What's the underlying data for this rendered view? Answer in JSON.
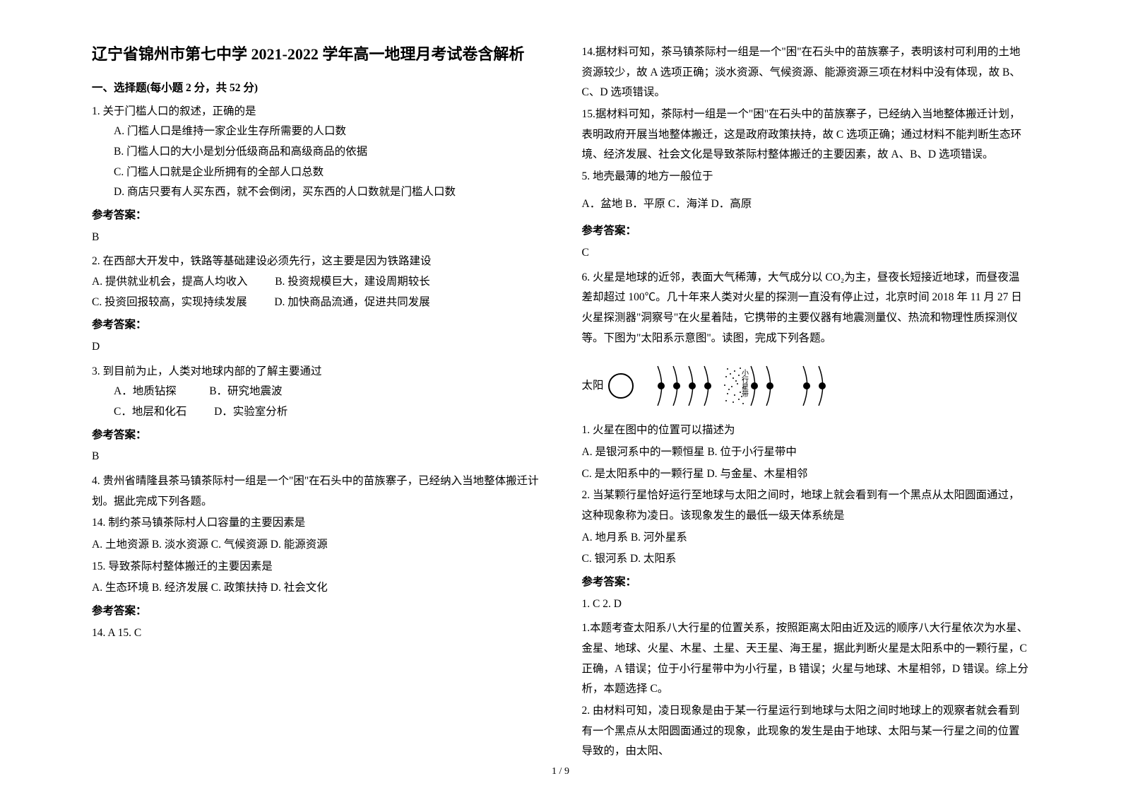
{
  "title": "辽宁省锦州市第七中学 2021-2022 学年高一地理月考试卷含解析",
  "section1_header": "一、选择题(每小题 2 分，共 52 分)",
  "q1": {
    "stem": "1. 关于门槛人口的叙述，正确的是",
    "optA": "A. 门槛人口是维持一家企业生存所需要的人口数",
    "optB": "B. 门槛人口的大小是划分低级商品和高级商品的依据",
    "optC": "C. 门槛人口就是企业所拥有的全部人口总数",
    "optD": "D. 商店只要有人买东西，就不会倒闭，买东西的人口数就是门槛人口数",
    "answer_label": "参考答案：",
    "answer": "B"
  },
  "q2": {
    "stem": "2. 在西部大开发中，铁路等基础建设必须先行，这主要是因为铁路建设",
    "optA": "A. 提供就业机会，提高人均收入",
    "optB": "B. 投资规模巨大，建设周期较长",
    "optC": "C. 投资回报较高，实现持续发展",
    "optD": "D. 加快商品流通，促进共同发展",
    "answer_label": "参考答案：",
    "answer": "D"
  },
  "q3": {
    "stem": "3. 到目前为止，人类对地球内部的了解主要通过",
    "optA": "A．地质钻探",
    "optB": "B．研究地震波",
    "optC": "C．地层和化石",
    "optD": "D．实验室分析",
    "answer_label": "参考答案：",
    "answer": "B"
  },
  "q4": {
    "intro": "4. 贵州省晴隆县茶马镇茶际村一组是一个\"困\"在石头中的苗族寨子，已经纳入当地整体搬迁计划。据此完成下列各题。",
    "sub14": "14.  制约茶马镇茶际村人口容量的主要因素是",
    "sub14_opts": "A. 土地资源   B. 淡水资源   C. 气候资源   D. 能源资源",
    "sub15": "15.  导致茶际村整体搬迁的主要因素是",
    "sub15_opts": "A. 生态环境   B. 经济发展   C. 政策扶持   D. 社会文化",
    "answer_label": "参考答案：",
    "answers": "14. A      15. C",
    "explain14": "14.据材料可知，茶马镇茶际村一组是一个\"困\"在石头中的苗族寨子，表明该村可利用的土地资源较少，故 A 选项正确；淡水资源、气候资源、能源资源三项在材料中没有体现，故 B、C、D 选项错误。",
    "explain15": "15.据材料可知，茶际村一组是一个\"困\"在石头中的苗族寨子，已经纳入当地整体搬迁计划，表明政府开展当地整体搬迁，这是政府政策扶持，故 C 选项正确；通过材料不能判断生态环境、经济发展、社会文化是导致茶际村整体搬迁的主要因素，故 A、B、D 选项错误。"
  },
  "q5": {
    "stem": "5. 地壳最薄的地方一般位于",
    "opts": "A．盆地  B．平原  C．海洋  D．高原",
    "answer_label": "参考答案：",
    "answer": "C"
  },
  "q6": {
    "intro": "6. 火星是地球的近邻，表面大气稀薄，大气成分以 CO₂为主，昼夜长短接近地球，而昼夜温差却超过 100℃。几十年来人类对火星的探测一直没有停止过，北京时间 2018 年 11 月 27 日火星探测器\"洞察号\"在火星着陆，它携带的主要仪器有地震测量仪、热流和物理性质探测仪等。下图为\"太阳系示意图\"。读图，完成下列各题。",
    "diagram": {
      "sun_label": "太阳",
      "belt_label": "小行星带",
      "planet_count": 8,
      "planet_gaps": [
        "small",
        "small",
        "small",
        "small",
        "belt",
        "small",
        "large",
        "small",
        "small",
        "small"
      ],
      "sun_radius": 18,
      "planet_dot_radius": 5,
      "arc_height": 60,
      "stroke": "#000000"
    },
    "sub1": "1.  火星在图中的位置可以描述为",
    "sub1_opts_line1": "A. 是银河系中的一颗恒星    B. 位于小行星带中",
    "sub1_opts_line2": "C. 是太阳系中的一颗行星    D. 与金星、木星相邻",
    "sub2": "2.  当某颗行星恰好运行至地球与太阳之间时，地球上就会看到有一个黑点从太阳圆面通过，这种现象称为凌日。该现象发生的最低一级天体系统是",
    "sub2_opts_line1": "A. 地月系    B. 河外星系",
    "sub2_opts_line2": "C. 银河系    D. 太阳系",
    "answer_label": "参考答案：",
    "answers": "1. C       2. D",
    "explain1": "1.本题考查太阳系八大行星的位置关系，按照距离太阳由近及远的顺序八大行星依次为水星、金星、地球、火星、木星、土星、天王星、海王星，据此判断火星是太阳系中的一颗行星，C 正确，A 错误；位于小行星带中为小行星，B 错误；火星与地球、木星相邻，D 错误。综上分析，本题选择 C。",
    "explain2": "2. 由材料可知，凌日现象是由于某一行星运行到地球与太阳之间时地球上的观察者就会看到有一个黑点从太阳圆面通过的现象，此现象的发生是由于地球、太阳与某一行星之间的位置导致的，由太阳、"
  },
  "footer": "1 / 9"
}
